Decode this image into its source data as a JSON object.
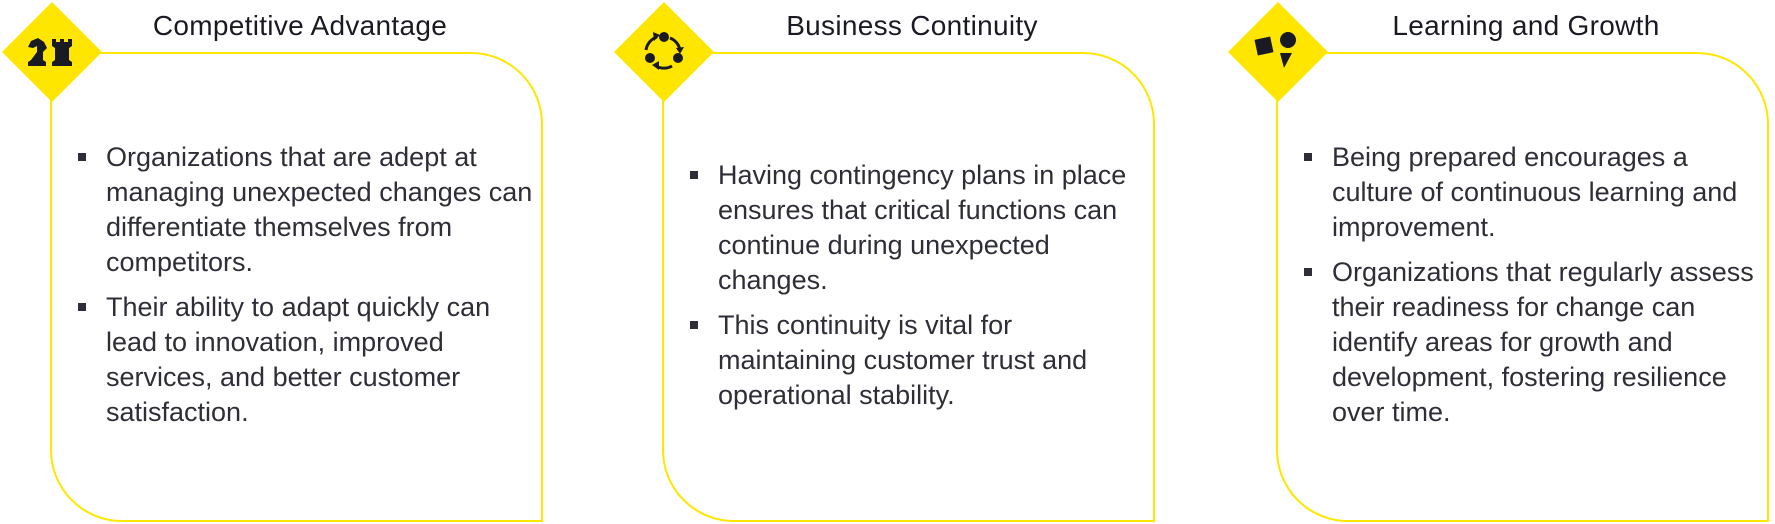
{
  "colors": {
    "accent": "#ffe600",
    "text": "#2e2e38",
    "icon": "#1a1a24"
  },
  "panels": [
    {
      "title": "Competitive Advantage",
      "icon": "chess-pieces-icon",
      "bullets": [
        "Organizations that are adept at managing unexpected changes can differentiate themselves from competitors.",
        "Their ability to adapt quickly can lead to innovation, improved services, and better customer satisfaction."
      ]
    },
    {
      "title": "Business Continuity",
      "icon": "cycle-arrows-icon",
      "bullets": [
        "Having contingency plans in place ensures that critical functions can continue during unexpected changes.",
        "This continuity is vital for maintaining customer trust and operational stability."
      ]
    },
    {
      "title": "Learning and Growth",
      "icon": "shapes-icon",
      "bullets": [
        "Being prepared encourages a culture of continuous learning and improvement.",
        "Organizations that regularly assess their readiness for change can identify areas for growth and development, fostering resilience over time."
      ]
    }
  ]
}
